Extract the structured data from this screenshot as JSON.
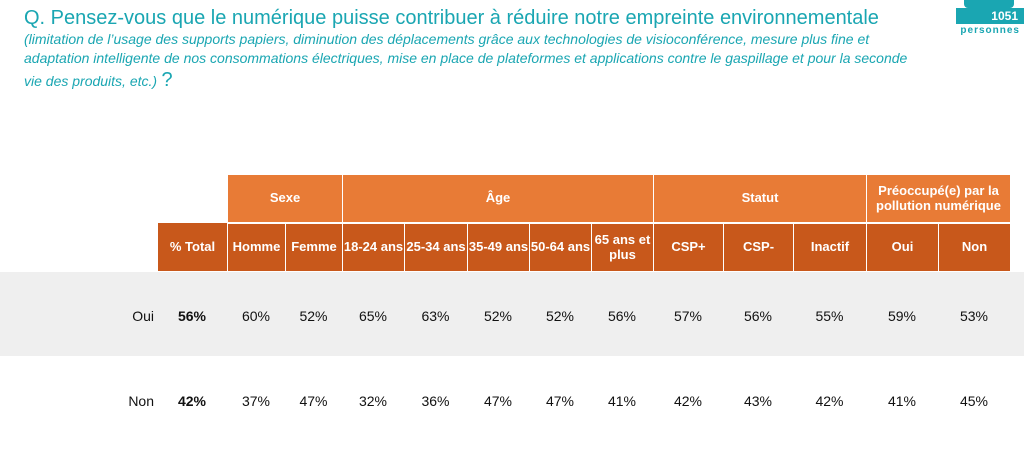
{
  "question": {
    "main": "Q. Pensez-vous que le numérique puisse contribuer à réduire notre empreinte environnementale",
    "paren": "(limitation de l’usage des supports papiers, diminution des déplacements grâce aux technologies de visioconférence, mesure plus fine et adaptation intelligente de nos consommations électriques, mise en place de plateformes et applications contre le gaspillage et pour la seconde vie des produits, etc.)",
    "qmark": "?"
  },
  "badge": {
    "count": "1051",
    "label": "personnes"
  },
  "colors": {
    "header": "#e87b36",
    "header_dark": "#c8581b",
    "title": "#1aa6b2",
    "band": "#efefef"
  },
  "chart_data": {
    "type": "table",
    "groups": [
      {
        "label": "Sexe",
        "span": 2
      },
      {
        "label": "Âge",
        "span": 5
      },
      {
        "label": "Statut",
        "span": 3
      },
      {
        "label": "Préoccupé(e) par la pollution numérique",
        "span": 2
      }
    ],
    "total_header": "% Total",
    "columns": [
      "Homme",
      "Femme",
      "18-24 ans",
      "25-34 ans",
      "35-49 ans",
      "50-64 ans",
      "65 ans et plus",
      "CSP+",
      "CSP-",
      "Inactif",
      "Oui",
      "Non"
    ],
    "rows": [
      {
        "label": "Oui",
        "total": "56%",
        "values": [
          "60%",
          "52%",
          "65%",
          "63%",
          "52%",
          "52%",
          "56%",
          "57%",
          "56%",
          "55%",
          "59%",
          "53%"
        ]
      },
      {
        "label": "Non",
        "total": "42%",
        "values": [
          "37%",
          "47%",
          "32%",
          "36%",
          "47%",
          "47%",
          "41%",
          "42%",
          "43%",
          "42%",
          "41%",
          "45%"
        ]
      }
    ]
  }
}
